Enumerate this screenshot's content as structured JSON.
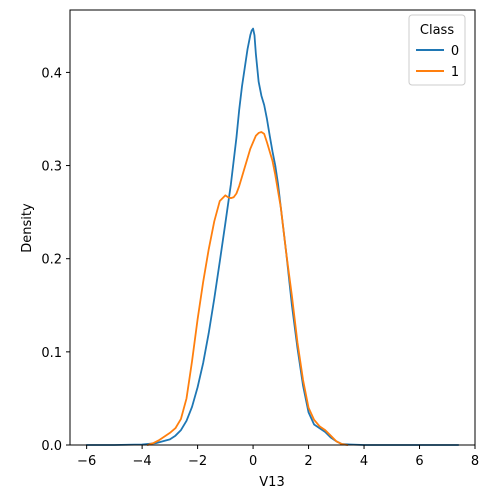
{
  "chart_data": {
    "type": "line",
    "title": "",
    "xlabel": "V13",
    "ylabel": "Density",
    "xlim": [
      -6.6,
      8.0
    ],
    "ylim": [
      0,
      0.467
    ],
    "xticks": [
      -6,
      -4,
      -2,
      0,
      2,
      4,
      6,
      8
    ],
    "xtick_labels": [
      "−6",
      "−4",
      "−2",
      "0",
      "2",
      "4",
      "6",
      "8"
    ],
    "yticks": [
      0.0,
      0.1,
      0.2,
      0.3,
      0.4
    ],
    "ytick_labels": [
      "0.0",
      "0.1",
      "0.2",
      "0.3",
      "0.4"
    ],
    "grid": false,
    "legend": {
      "title": "Class",
      "placement": "top-right"
    },
    "series": [
      {
        "name": "0",
        "color": "#1f77b4",
        "x": [
          -6.0,
          -5.0,
          -4.0,
          -3.5,
          -3.0,
          -2.8,
          -2.6,
          -2.4,
          -2.2,
          -2.0,
          -1.8,
          -1.6,
          -1.4,
          -1.2,
          -1.0,
          -0.8,
          -0.6,
          -0.5,
          -0.4,
          -0.3,
          -0.2,
          -0.1,
          -0.05,
          0.0,
          0.05,
          0.1,
          0.2,
          0.3,
          0.4,
          0.5,
          0.6,
          0.7,
          0.8,
          0.9,
          1.0,
          1.2,
          1.4,
          1.6,
          1.8,
          2.0,
          2.2,
          2.4,
          2.6,
          2.8,
          3.0,
          3.2,
          3.5,
          4.0,
          5.0,
          6.0,
          7.4
        ],
        "y": [
          0.0,
          0.0,
          0.0005,
          0.002,
          0.006,
          0.01,
          0.016,
          0.026,
          0.041,
          0.062,
          0.088,
          0.12,
          0.157,
          0.197,
          0.238,
          0.28,
          0.33,
          0.36,
          0.385,
          0.405,
          0.425,
          0.44,
          0.445,
          0.447,
          0.44,
          0.42,
          0.39,
          0.375,
          0.365,
          0.35,
          0.332,
          0.315,
          0.3,
          0.28,
          0.255,
          0.205,
          0.15,
          0.104,
          0.064,
          0.035,
          0.022,
          0.018,
          0.014,
          0.008,
          0.004,
          0.001,
          0.0005,
          0.0,
          0.0,
          0.0,
          0.0
        ]
      },
      {
        "name": "1",
        "color": "#ff7f0e",
        "x": [
          -3.8,
          -3.6,
          -3.4,
          -3.2,
          -3.0,
          -2.8,
          -2.6,
          -2.4,
          -2.2,
          -2.0,
          -1.8,
          -1.6,
          -1.4,
          -1.2,
          -1.0,
          -0.9,
          -0.8,
          -0.7,
          -0.6,
          -0.5,
          -0.4,
          -0.3,
          -0.2,
          -0.1,
          0.0,
          0.1,
          0.2,
          0.3,
          0.4,
          0.5,
          0.6,
          0.7,
          0.8,
          1.0,
          1.2,
          1.4,
          1.6,
          1.8,
          2.0,
          2.2,
          2.4,
          2.6,
          2.8,
          3.0,
          3.2,
          3.4
        ],
        "y": [
          0.0,
          0.002,
          0.005,
          0.009,
          0.013,
          0.018,
          0.028,
          0.05,
          0.09,
          0.135,
          0.175,
          0.21,
          0.24,
          0.262,
          0.268,
          0.266,
          0.265,
          0.266,
          0.27,
          0.278,
          0.288,
          0.298,
          0.308,
          0.318,
          0.325,
          0.332,
          0.335,
          0.336,
          0.334,
          0.325,
          0.315,
          0.305,
          0.29,
          0.255,
          0.205,
          0.16,
          0.11,
          0.07,
          0.04,
          0.027,
          0.02,
          0.016,
          0.01,
          0.004,
          0.001,
          0.0
        ]
      }
    ]
  }
}
